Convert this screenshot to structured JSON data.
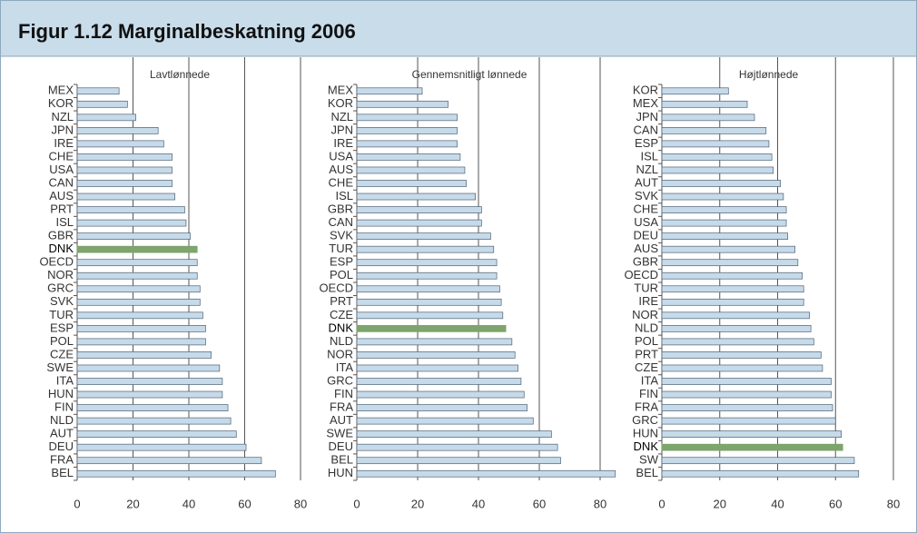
{
  "header": {
    "title": "Figur 1.12 Marginalbeskatning 2006"
  },
  "chart_data": [
    {
      "type": "bar",
      "orientation": "horizontal",
      "title": "Lavtlønnede",
      "categories": [
        "MEX",
        "KOR",
        "NZL",
        "JPN",
        "IRE",
        "CHE",
        "USA",
        "CAN",
        "AUS",
        "PRT",
        "ISL",
        "GBR",
        "DNK",
        "OECD",
        "NOR",
        "GRC",
        "SVK",
        "TUR",
        "ESP",
        "POL",
        "CZE",
        "SWE",
        "ITA",
        "HUN",
        "FIN",
        "NLD",
        "AUT",
        "DEU",
        "FRA",
        "BEL"
      ],
      "values": [
        15,
        18,
        21,
        29,
        31,
        34,
        34,
        34,
        35,
        38.5,
        39,
        40.5,
        43,
        43,
        43,
        44,
        44,
        45,
        46,
        46,
        48,
        51,
        52,
        52,
        54,
        55,
        57,
        60.5,
        66,
        71
      ],
      "color": "#c6dae9",
      "highlight_category": "DNK",
      "highlight_color": "#7da56c",
      "xlim": [
        0,
        80
      ],
      "xticks": [
        0,
        20,
        40,
        60,
        80
      ],
      "grid": true
    },
    {
      "type": "bar",
      "orientation": "horizontal",
      "title": "Gennemsnitligt lønnede",
      "categories": [
        "MEX",
        "KOR",
        "NZL",
        "JPN",
        "IRE",
        "USA",
        "AUS",
        "CHE",
        "ISL",
        "GBR",
        "CAN",
        "SVK",
        "TUR",
        "ESP",
        "POL",
        "OECD",
        "PRT",
        "CZE",
        "DNK",
        "NLD",
        "NOR",
        "ITA",
        "GRC",
        "FIN",
        "FRA",
        "AUT",
        "SWE",
        "DEU",
        "BEL",
        "HUN"
      ],
      "values": [
        21.5,
        30,
        33,
        33,
        33,
        34,
        35.5,
        36,
        39,
        41,
        41,
        44,
        45,
        46,
        46,
        47,
        47.5,
        48,
        49,
        51,
        52,
        53,
        54,
        55,
        56,
        58,
        64,
        66,
        67,
        85
      ],
      "color": "#c6dae9",
      "highlight_category": "DNK",
      "highlight_color": "#7da56c",
      "xlim": [
        0,
        80
      ],
      "xticks": [
        0,
        20,
        40,
        60,
        80
      ],
      "grid": true
    },
    {
      "type": "bar",
      "orientation": "horizontal",
      "title": "Højtlønnede",
      "categories": [
        "KOR",
        "MEX",
        "JPN",
        "CAN",
        "ESP",
        "ISL",
        "NZL",
        "AUT",
        "SVK",
        "CHE",
        "USA",
        "DEU",
        "AUS",
        "GBR",
        "OECD",
        "TUR",
        "IRE",
        "NOR",
        "NLD",
        "POL",
        "PRT",
        "CZE",
        "ITA",
        "FIN",
        "FRA",
        "GRC",
        "HUN",
        "DNK",
        "SW",
        "BEL"
      ],
      "values": [
        23,
        29.5,
        32,
        36,
        37,
        38,
        38.5,
        41,
        42,
        43,
        43,
        43.5,
        46,
        47,
        48.5,
        49,
        49,
        51,
        51.5,
        52.5,
        55,
        55.5,
        58.5,
        58.5,
        59,
        60,
        62,
        62.5,
        66.5,
        68
      ],
      "color": "#c6dae9",
      "highlight_category": "DNK",
      "highlight_color": "#7da56c",
      "xlim": [
        0,
        80
      ],
      "xticks": [
        0,
        20,
        40,
        60,
        80
      ],
      "grid": true
    }
  ]
}
